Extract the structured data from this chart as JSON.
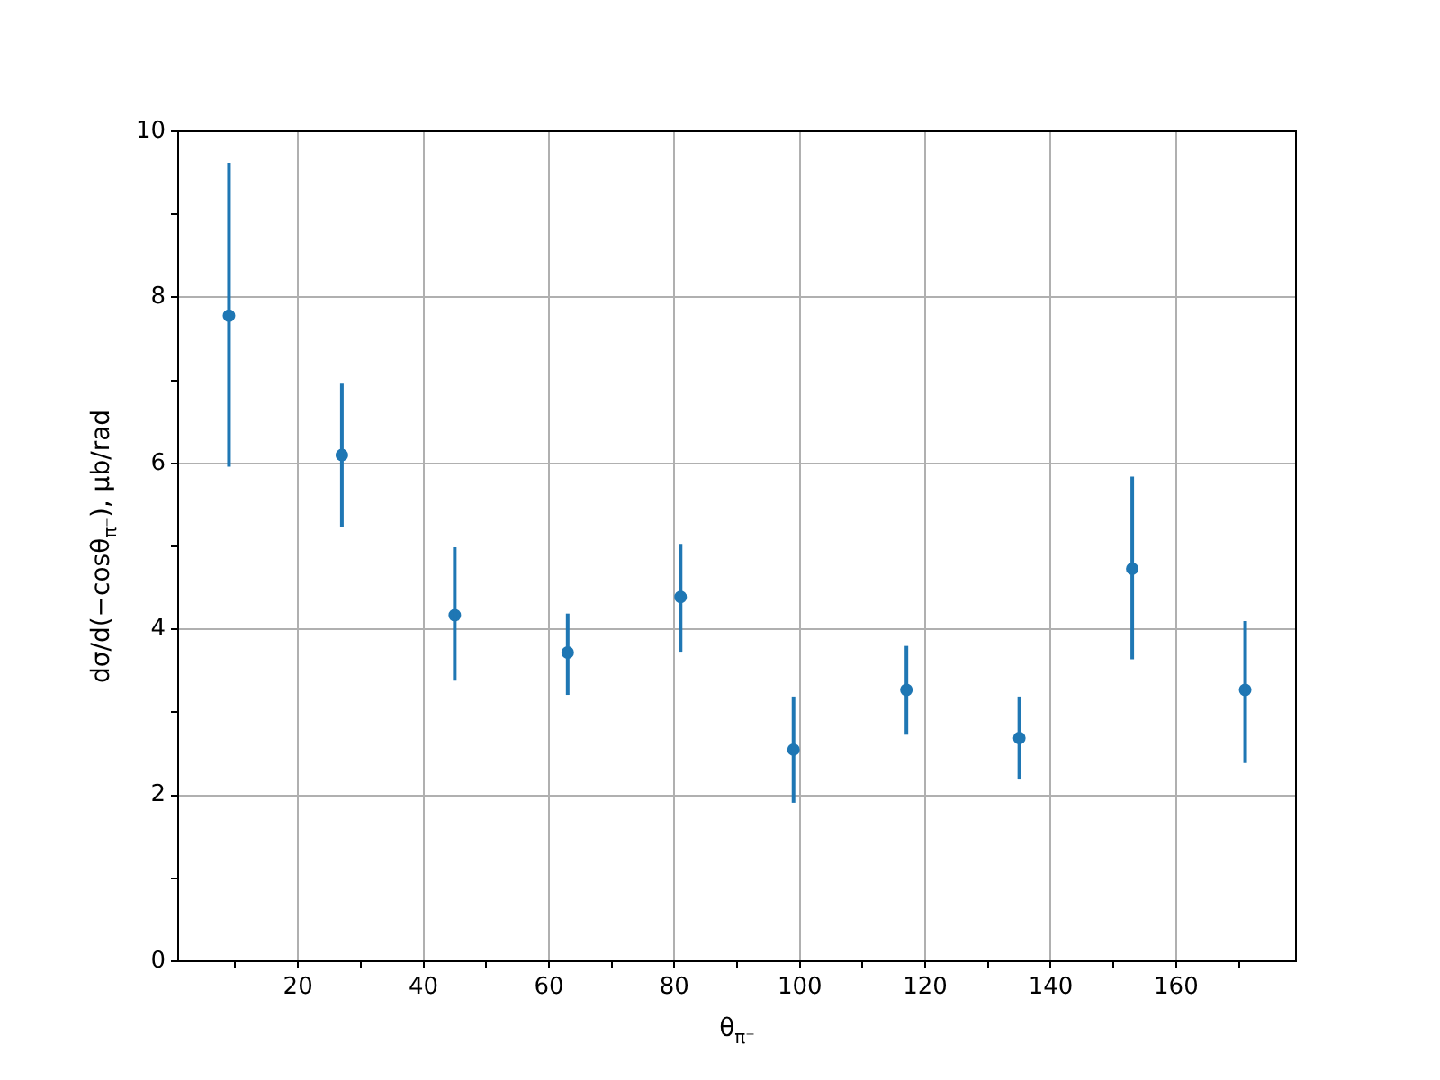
{
  "chart_data": {
    "type": "scatter",
    "xlabel": "θ$_{π⁻}$",
    "ylabel": "dσ/d(−cosθ$_{π⁻}$), μb/rad",
    "x": [
      9,
      27,
      45,
      63,
      81,
      99,
      117,
      135,
      153,
      171
    ],
    "series": [
      {
        "color": "#1f77b4",
        "values": [
          7.78,
          6.1,
          4.17,
          3.72,
          4.39,
          2.55,
          3.27,
          2.69,
          4.73,
          3.27
        ],
        "errors": [
          [
            5.96,
            9.62
          ],
          [
            5.23,
            6.96
          ],
          [
            3.38,
            4.99
          ],
          [
            3.21,
            4.19
          ],
          [
            3.73,
            5.03
          ],
          [
            1.91,
            3.19
          ],
          [
            2.73,
            3.8
          ],
          [
            2.19,
            3.19
          ],
          [
            3.64,
            5.84
          ],
          [
            2.39,
            4.1
          ]
        ]
      }
    ],
    "xlim": [
      0.9,
      179.1
    ],
    "ylim": [
      0,
      10
    ],
    "xticks": [
      {
        "value": 10,
        "label": null
      },
      20,
      {
        "value": 30,
        "label": null
      },
      40,
      {
        "value": 50,
        "label": null
      },
      60,
      {
        "value": 70,
        "label": null
      },
      80,
      {
        "value": 90,
        "label": null
      },
      100,
      {
        "value": 110,
        "label": null
      },
      120,
      {
        "value": 130,
        "label": null
      },
      140,
      {
        "value": 150,
        "label": null
      },
      160,
      {
        "value": 170,
        "label": null
      }
    ],
    "yticks": [
      0,
      {
        "value": 1,
        "label": null
      },
      2,
      {
        "value": 3,
        "label": null
      },
      4,
      {
        "value": 5,
        "label": null
      },
      6,
      {
        "value": 7,
        "label": null
      },
      8,
      {
        "value": 9,
        "label": null
      },
      10
    ],
    "grid": true,
    "marker": "circle",
    "legend": false
  }
}
